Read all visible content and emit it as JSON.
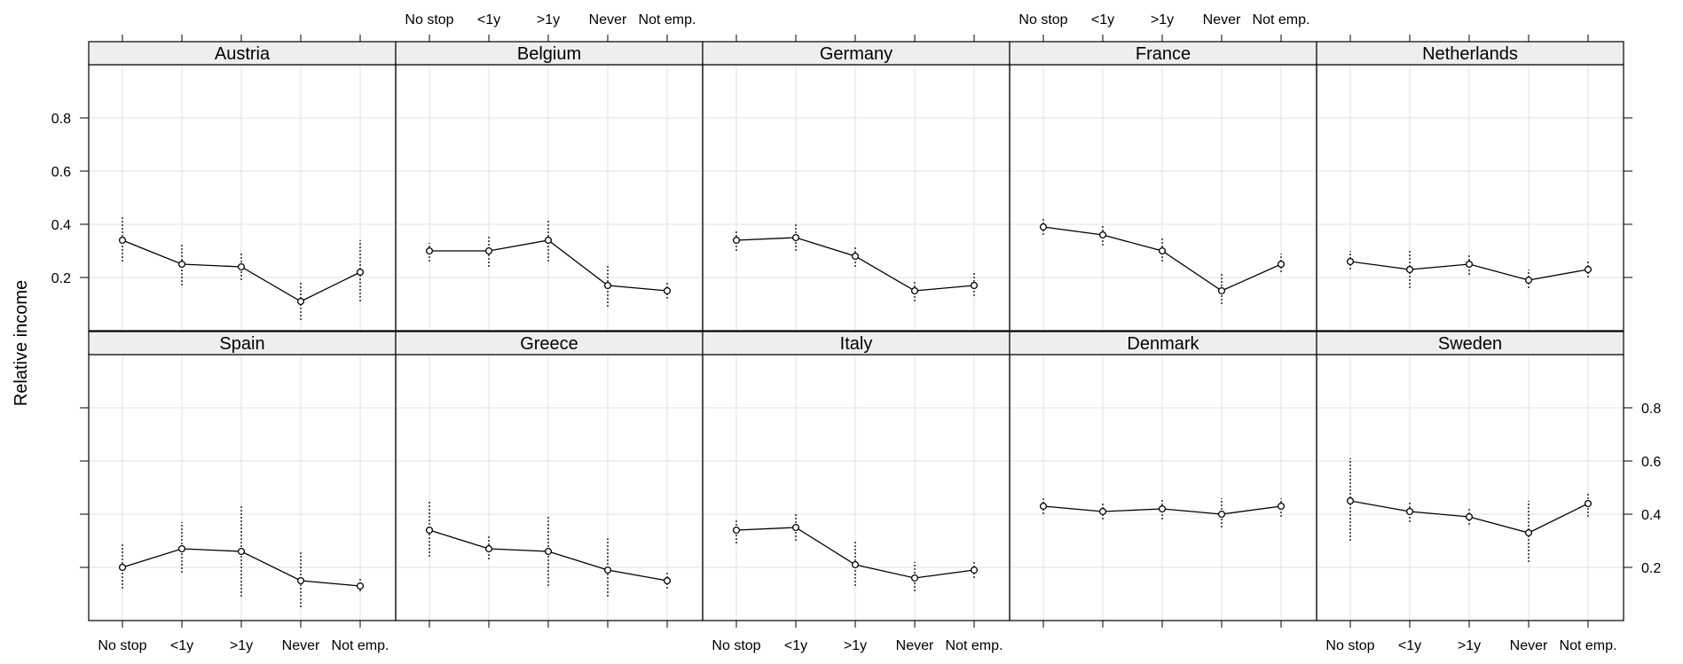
{
  "chart_data": {
    "type": "line",
    "ylabel": "Relative income",
    "categories": [
      "No stop",
      "<1y",
      ">1y",
      "Never",
      "Not emp."
    ],
    "ylim": [
      0.0,
      1.0
    ],
    "yticks": [
      0.2,
      0.4,
      0.6,
      0.8
    ],
    "grid": true,
    "layout": "2 rows x 5 columns",
    "panels": [
      {
        "name": "Austria",
        "values": [
          0.34,
          0.25,
          0.24,
          0.11,
          0.22
        ],
        "lower": [
          0.26,
          0.17,
          0.19,
          0.04,
          0.11
        ],
        "upper": [
          0.43,
          0.33,
          0.29,
          0.18,
          0.34
        ]
      },
      {
        "name": "Belgium",
        "values": [
          0.3,
          0.3,
          0.34,
          0.17,
          0.15
        ],
        "lower": [
          0.26,
          0.24,
          0.26,
          0.09,
          0.12
        ],
        "upper": [
          0.33,
          0.36,
          0.42,
          0.25,
          0.18
        ]
      },
      {
        "name": "Germany",
        "values": [
          0.34,
          0.35,
          0.28,
          0.15,
          0.17
        ],
        "lower": [
          0.3,
          0.3,
          0.24,
          0.11,
          0.13
        ],
        "upper": [
          0.38,
          0.4,
          0.32,
          0.19,
          0.22
        ]
      },
      {
        "name": "France",
        "values": [
          0.39,
          0.36,
          0.3,
          0.15,
          0.25
        ],
        "lower": [
          0.36,
          0.32,
          0.26,
          0.1,
          0.22
        ],
        "upper": [
          0.42,
          0.4,
          0.35,
          0.22,
          0.29
        ]
      },
      {
        "name": "Netherlands",
        "values": [
          0.26,
          0.23,
          0.25,
          0.19,
          0.23
        ],
        "lower": [
          0.23,
          0.16,
          0.21,
          0.16,
          0.2
        ],
        "upper": [
          0.3,
          0.3,
          0.29,
          0.23,
          0.26
        ]
      },
      {
        "name": "Spain",
        "values": [
          0.2,
          0.27,
          0.26,
          0.15,
          0.13
        ],
        "lower": [
          0.12,
          0.18,
          0.09,
          0.05,
          0.11
        ],
        "upper": [
          0.29,
          0.37,
          0.43,
          0.26,
          0.16
        ]
      },
      {
        "name": "Greece",
        "values": [
          0.34,
          0.27,
          0.26,
          0.19,
          0.15
        ],
        "lower": [
          0.24,
          0.23,
          0.13,
          0.09,
          0.12
        ],
        "upper": [
          0.45,
          0.32,
          0.39,
          0.31,
          0.18
        ]
      },
      {
        "name": "Italy",
        "values": [
          0.34,
          0.35,
          0.21,
          0.16,
          0.19
        ],
        "lower": [
          0.29,
          0.3,
          0.13,
          0.11,
          0.16
        ],
        "upper": [
          0.38,
          0.4,
          0.3,
          0.22,
          0.22
        ]
      },
      {
        "name": "Denmark",
        "values": [
          0.43,
          0.41,
          0.42,
          0.4,
          0.43
        ],
        "lower": [
          0.4,
          0.38,
          0.38,
          0.35,
          0.39
        ],
        "upper": [
          0.46,
          0.44,
          0.46,
          0.46,
          0.46
        ]
      },
      {
        "name": "Sweden",
        "values": [
          0.45,
          0.41,
          0.39,
          0.33,
          0.44
        ],
        "lower": [
          0.3,
          0.37,
          0.36,
          0.22,
          0.39
        ],
        "upper": [
          0.61,
          0.45,
          0.42,
          0.45,
          0.48
        ]
      }
    ]
  },
  "colors": {
    "strip_fill": "#eeeeee",
    "grid": "#e2e2e2",
    "line": "#000000",
    "point_fill": "#ffffff",
    "frame": "#000000"
  }
}
